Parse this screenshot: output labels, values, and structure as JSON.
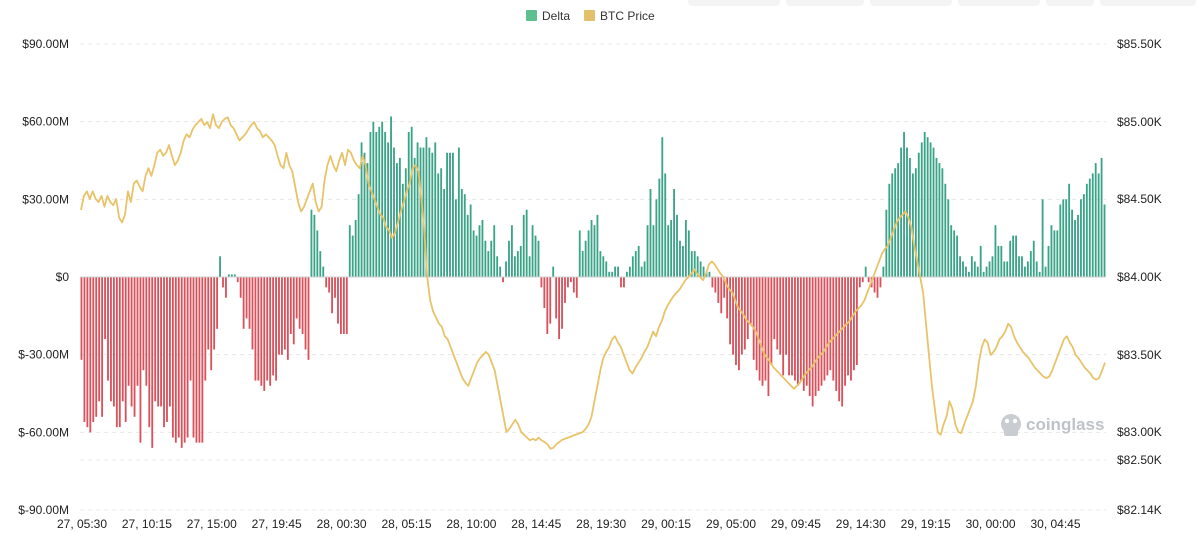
{
  "chart_data": {
    "type": "bar",
    "title": "",
    "legend": {
      "placement": "top-center",
      "items": [
        {
          "name": "Delta",
          "color": "#5fbf8f"
        },
        {
          "name": "BTC Price",
          "color": "#e3c16a"
        }
      ]
    },
    "colors": {
      "delta_positive": "#3aa388",
      "delta_negative": "#d9515b",
      "price_line": "#e8c36a",
      "grid": "#e8e8e8"
    },
    "grid": true,
    "x_tick_labels": [
      "27, 05:30",
      "27, 10:15",
      "27, 15:00",
      "27, 19:45",
      "28, 00:30",
      "28, 05:15",
      "28, 10:00",
      "28, 14:45",
      "28, 19:30",
      "29, 00:15",
      "29, 05:00",
      "29, 09:45",
      "29, 14:30",
      "29, 19:15",
      "30, 00:00",
      "30, 04:45"
    ],
    "y_left": {
      "tick_labels": [
        "$90.00M",
        "$60.00M",
        "$30.00M",
        "$0",
        "$-30.00M",
        "$-60.00M",
        "$-90.00M"
      ],
      "tick_values": [
        90,
        60,
        30,
        0,
        -30,
        -60,
        -90
      ],
      "unit": "M USD",
      "range": [
        -90,
        90
      ]
    },
    "y_right": {
      "tick_labels": [
        "$85.50K",
        "$85.00K",
        "$84.50K",
        "$84.00K",
        "$83.50K",
        "$83.00K",
        "$82.50K",
        "$82.14K"
      ],
      "tick_values": [
        85.5,
        85.0,
        84.5,
        84.0,
        83.5,
        83.0,
        82.5,
        82.14
      ],
      "unit": "K USD",
      "range": [
        82.14,
        85.5
      ]
    },
    "series": [
      {
        "name": "Delta",
        "axis": "left",
        "type": "bar",
        "values": [
          -32,
          -56,
          -58,
          -60,
          -56,
          -54,
          -48,
          -54,
          -24,
          -40,
          -48,
          -50,
          -58,
          -58,
          -48,
          -56,
          -42,
          -50,
          -54,
          -42,
          -64,
          -36,
          -42,
          -58,
          -66,
          -48,
          -50,
          -50,
          -58,
          -56,
          -50,
          -62,
          -64,
          -62,
          -66,
          -64,
          -62,
          -40,
          -62,
          -64,
          -64,
          -64,
          -40,
          -28,
          -36,
          -28,
          -20,
          8,
          -4,
          -8,
          1,
          1,
          1,
          -2,
          -8,
          -20,
          -16,
          -20,
          -28,
          -40,
          -40,
          -42,
          -44,
          -40,
          -42,
          -38,
          -40,
          -30,
          -30,
          -28,
          -32,
          -22,
          -26,
          -16,
          -20,
          -22,
          -28,
          -32,
          26,
          24,
          18,
          10,
          4,
          -4,
          -6,
          -14,
          -8,
          -18,
          -22,
          -22,
          -22,
          20,
          16,
          22,
          32,
          52,
          48,
          44,
          56,
          60,
          56,
          58,
          60,
          56,
          52,
          62,
          50,
          44,
          46,
          36,
          42,
          56,
          58,
          46,
          52,
          50,
          50,
          54,
          50,
          48,
          52,
          40,
          42,
          34,
          48,
          48,
          48,
          30,
          50,
          34,
          32,
          24,
          28,
          18,
          16,
          20,
          22,
          14,
          10,
          14,
          20,
          8,
          4,
          -2,
          6,
          14,
          20,
          8,
          10,
          12,
          24,
          26,
          8,
          20,
          16,
          14,
          -4,
          -12,
          -22,
          -18,
          4,
          -16,
          -24,
          -20,
          -10,
          -4,
          -2,
          -6,
          -8,
          18,
          10,
          14,
          18,
          22,
          20,
          24,
          10,
          8,
          6,
          2,
          2,
          4,
          4,
          -4,
          -4,
          2,
          4,
          8,
          10,
          12,
          4,
          6,
          20,
          34,
          20,
          30,
          38,
          54,
          40,
          20,
          22,
          34,
          24,
          14,
          12,
          22,
          18,
          10,
          10,
          8,
          6,
          4,
          2,
          2,
          -4,
          -6,
          -10,
          -14,
          -8,
          -16,
          -26,
          -30,
          -34,
          -36,
          -30,
          -28,
          -24,
          -18,
          -32,
          -36,
          -40,
          -42,
          -40,
          -46,
          -34,
          -24,
          -28,
          -30,
          -38,
          -30,
          -38,
          -38,
          -40,
          -42,
          -40,
          -44,
          -42,
          -46,
          -50,
          -46,
          -44,
          -42,
          -40,
          -38,
          -36,
          -40,
          -44,
          -48,
          -50,
          -42,
          -38,
          -40,
          -36,
          -34,
          -4,
          -2,
          4,
          -2,
          -4,
          -6,
          -8,
          -4,
          4,
          26,
          36,
          40,
          42,
          44,
          50,
          56,
          50,
          46,
          40,
          42,
          48,
          52,
          56,
          54,
          52,
          50,
          46,
          44,
          42,
          36,
          30,
          20,
          18,
          16,
          8,
          6,
          4,
          2,
          8,
          6,
          4,
          12,
          2,
          4,
          6,
          8,
          20,
          12,
          12,
          6,
          6,
          14,
          16,
          16,
          8,
          8,
          4,
          6,
          10,
          14,
          6,
          2,
          30,
          4,
          12,
          20,
          18,
          18,
          28,
          30,
          30,
          36,
          26,
          22,
          24,
          30,
          32,
          36,
          38,
          40,
          44,
          40,
          46,
          28
        ]
      },
      {
        "name": "BTC Price",
        "axis": "right",
        "type": "line",
        "values": [
          84.43,
          84.52,
          84.55,
          84.5,
          84.55,
          84.5,
          84.48,
          84.52,
          84.45,
          84.52,
          84.48,
          84.46,
          84.5,
          84.38,
          84.35,
          84.4,
          84.55,
          84.48,
          84.6,
          84.62,
          84.58,
          84.55,
          84.65,
          84.7,
          84.65,
          84.72,
          84.8,
          84.82,
          84.78,
          84.8,
          84.85,
          84.78,
          84.72,
          84.75,
          84.8,
          84.88,
          84.92,
          84.9,
          84.95,
          84.98,
          85.0,
          85.02,
          84.98,
          85.0,
          84.96,
          85.05,
          84.98,
          84.96,
          85.0,
          85.02,
          85.03,
          84.98,
          84.96,
          84.92,
          84.88,
          84.9,
          84.92,
          84.95,
          84.98,
          85.0,
          84.96,
          84.94,
          84.9,
          84.92,
          84.9,
          84.88,
          84.85,
          84.78,
          84.72,
          84.7,
          84.8,
          84.72,
          84.68,
          84.58,
          84.48,
          84.42,
          84.45,
          84.5,
          84.55,
          84.6,
          84.48,
          84.42,
          84.45,
          84.62,
          84.72,
          84.78,
          84.72,
          84.68,
          84.75,
          84.8,
          84.72,
          84.82,
          84.8,
          84.75,
          84.72,
          84.7,
          84.78,
          84.72,
          84.6,
          84.55,
          84.5,
          84.45,
          84.4,
          84.38,
          84.32,
          84.3,
          84.25,
          84.28,
          84.35,
          84.42,
          84.48,
          84.55,
          84.6,
          84.7,
          84.72,
          84.68,
          84.5,
          84.3,
          84.0,
          83.85,
          83.78,
          83.74,
          83.7,
          83.68,
          83.62,
          83.6,
          83.55,
          83.5,
          83.45,
          83.4,
          83.35,
          83.32,
          83.3,
          83.35,
          83.4,
          83.45,
          83.48,
          83.5,
          83.52,
          83.5,
          83.45,
          83.4,
          83.3,
          83.2,
          83.1,
          83.0,
          83.02,
          83.05,
          83.08,
          83.05,
          83.0,
          82.95,
          82.9,
          82.85,
          82.88,
          82.85,
          82.9,
          82.85,
          82.82,
          82.78,
          82.7,
          82.72,
          82.78,
          82.82,
          82.86,
          82.88,
          82.9,
          82.92,
          82.94,
          82.96,
          82.98,
          83.0,
          83.02,
          83.05,
          83.1,
          83.2,
          83.3,
          83.4,
          83.48,
          83.52,
          83.55,
          83.6,
          83.62,
          83.58,
          83.55,
          83.5,
          83.45,
          83.4,
          83.38,
          83.42,
          83.45,
          83.48,
          83.52,
          83.55,
          83.6,
          83.65,
          83.62,
          83.68,
          83.72,
          83.78,
          83.82,
          83.85,
          83.88,
          83.9,
          83.92,
          83.95,
          83.98,
          84.0,
          84.02,
          84.05,
          84.02,
          84.0,
          83.98,
          84.02,
          84.08,
          84.1,
          84.08,
          84.05,
          84.02,
          84.0,
          83.95,
          83.92,
          83.9,
          83.85,
          83.8,
          83.78,
          83.75,
          83.72,
          83.7,
          83.68,
          83.65,
          83.6,
          83.55,
          83.5,
          83.48,
          83.45,
          83.42,
          83.4,
          83.38,
          83.36,
          83.34,
          83.32,
          83.3,
          83.28,
          83.3,
          83.32,
          83.35,
          83.38,
          83.4,
          83.42,
          83.45,
          83.48,
          83.5,
          83.52,
          83.55,
          83.58,
          83.6,
          83.62,
          83.64,
          83.66,
          83.68,
          83.7,
          83.72,
          83.75,
          83.78,
          83.8,
          83.82,
          83.85,
          83.9,
          83.95,
          84.0,
          84.05,
          84.1,
          84.15,
          84.18,
          84.2,
          84.25,
          84.3,
          84.35,
          84.38,
          84.4,
          84.42,
          84.38,
          84.32,
          84.2,
          84.1,
          84.0,
          83.9,
          83.7,
          83.5,
          83.3,
          83.15,
          83.0,
          82.95,
          83.05,
          83.1,
          83.2,
          83.15,
          83.05,
          83.0,
          82.98,
          83.05,
          83.1,
          83.15,
          83.2,
          83.3,
          83.45,
          83.55,
          83.6,
          83.58,
          83.5,
          83.52,
          83.55,
          83.6,
          83.62,
          83.65,
          83.7,
          83.68,
          83.62,
          83.58,
          83.55,
          83.52,
          83.5,
          83.48,
          83.45,
          83.42,
          83.4,
          83.38,
          83.36,
          83.35,
          83.36,
          83.4,
          83.45,
          83.5,
          83.55,
          83.6,
          83.62,
          83.58,
          83.55,
          83.5,
          83.48,
          83.45,
          83.42,
          83.4,
          83.38,
          83.35,
          83.34,
          83.35,
          83.4,
          83.45
        ]
      }
    ],
    "watermark": "coinglass"
  }
}
